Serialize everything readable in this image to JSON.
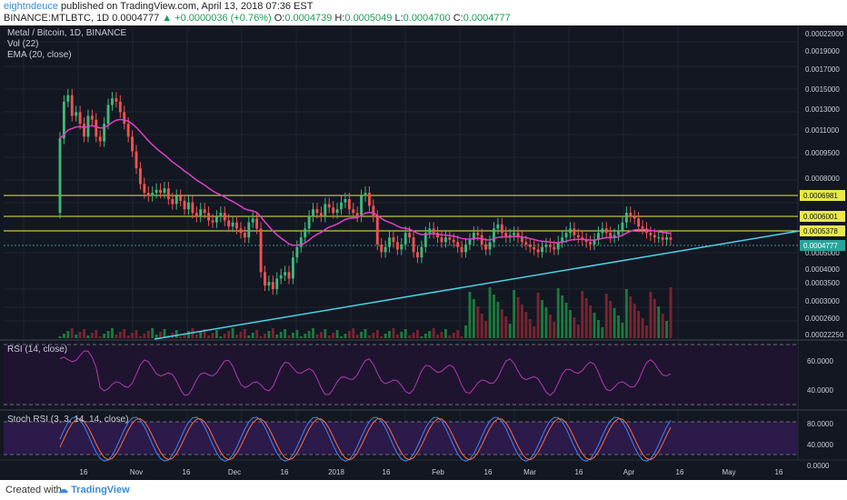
{
  "header": {
    "author": "eightndeuce",
    "published_text": "published on TradingView.com, April 13, 2018 07:36 EST",
    "symbol_text": "BINANCE:MTLBTC, 1D",
    "last": "0.0004777",
    "change": "▲ +0.0000036 (+0.76%)",
    "o_label": "O:",
    "o_value": "0.0004739",
    "h_label": "H:",
    "h_value": "0.0005049",
    "l_label": "L:",
    "l_value": "0.0004700",
    "c_label": "C:",
    "c_value": "0.0004777"
  },
  "main_pane": {
    "title": "Metal / Bitcoin, 1D, BINANCE",
    "vol_label": "Vol (22)",
    "ema_label": "EMA (20, close)"
  },
  "rsi_pane": {
    "label": "RSI (14, close)"
  },
  "stoch_pane": {
    "label": "Stoch RSI (3, 3, 14, 14, close)"
  },
  "footer": {
    "created_with": "Created with",
    "brand": "TradingView"
  },
  "colors": {
    "background": "#131722",
    "bull": "#26a69a",
    "bull_candle": "#3fb97a",
    "bear": "#ef5350",
    "ema": "#e040c8",
    "hline": "#e8e84a",
    "trendline": "#4fd0e8",
    "rsi": "#b03ab0",
    "stoch_k": "#3a86ff",
    "stoch_d": "#ff6a3d"
  },
  "chart_data": [
    {
      "type": "candlestick",
      "title": "Metal / Bitcoin, 1D, BINANCE",
      "price_axis_ticks": [
        "0.00022000",
        "0.0019000",
        "0.0017000",
        "0.0015000",
        "0.0013000",
        "0.0011000",
        "0.0009500",
        "0.0008000",
        "0.0005000",
        "0.0004000",
        "0.0003500",
        "0.0003000",
        "0.0002600",
        "0.00022250"
      ],
      "time_axis_ticks": [
        "16",
        "Nov",
        "16",
        "Dec",
        "16",
        "2018",
        "16",
        "Feb",
        "16",
        "Mar",
        "16",
        "Apr",
        "16",
        "May",
        "16"
      ],
      "price_labels": [
        {
          "value": "0.0006981",
          "style": "hline"
        },
        {
          "value": "0.0006001",
          "style": "hline"
        },
        {
          "value": "0.0005378",
          "style": "hline"
        },
        {
          "value": "0.0004777",
          "style": "last"
        }
      ],
      "close_series": [
        0.00118,
        0.00165,
        0.00175,
        0.00145,
        0.0015,
        0.00135,
        0.0012,
        0.00145,
        0.0014,
        0.0012,
        0.00115,
        0.00135,
        0.0016,
        0.0017,
        0.00165,
        0.0015,
        0.00135,
        0.0012,
        0.00105,
        0.0009,
        0.00078,
        0.00072,
        0.0007,
        0.00072,
        0.00074,
        0.00072,
        0.00075,
        0.00068,
        0.00065,
        0.0007,
        0.00067,
        0.00062,
        0.00066,
        0.0006,
        0.00058,
        0.00062,
        0.0006,
        0.00056,
        0.00055,
        0.00058,
        0.0006,
        0.00056,
        0.00053,
        0.00055,
        0.00052,
        0.0005,
        0.00048,
        0.00055,
        0.00057,
        0.00052,
        0.00035,
        0.00031,
        0.00032,
        0.0003,
        0.00033,
        0.00034,
        0.00035,
        0.00033,
        0.0004,
        0.00044,
        0.00048,
        0.00052,
        0.00058,
        0.00062,
        0.0006,
        0.00058,
        0.00065,
        0.00063,
        0.0006,
        0.00062,
        0.00066,
        0.00068,
        0.00062,
        0.0006,
        0.00058,
        0.0007,
        0.00072,
        0.00064,
        0.00058,
        0.00045,
        0.00042,
        0.00044,
        0.00048,
        0.00046,
        0.00043,
        0.00045,
        0.0005,
        0.00048,
        0.00042,
        0.0004,
        0.00044,
        0.0005,
        0.00052,
        0.0005,
        0.00048,
        0.00046,
        0.00048,
        0.00047,
        0.00046,
        0.00044,
        0.00042,
        0.00045,
        0.00047,
        0.0005,
        0.00049,
        0.00045,
        0.00043,
        0.00046,
        0.00052,
        0.00054,
        0.0005,
        0.00048,
        0.00049,
        0.0005,
        0.00048,
        0.00046,
        0.00045,
        0.00044,
        0.00043,
        0.00042,
        0.00044,
        0.00045,
        0.00044,
        0.00043,
        0.00046,
        0.00048,
        0.0005,
        0.00052,
        0.00049,
        0.00048,
        0.00047,
        0.00046,
        0.00045,
        0.00047,
        0.0005,
        0.00052,
        0.0005,
        0.00048,
        0.00049,
        0.00051,
        0.00055,
        0.0006,
        0.00058,
        0.00057,
        0.00053,
        0.00052,
        0.0005,
        0.00049,
        0.00048,
        0.00048,
        0.00047,
        0.00048,
        0.00047
      ]
    },
    {
      "type": "line",
      "title": "RSI (14, close)",
      "y_ticks": [
        "60.0000",
        "40.0000"
      ],
      "ylim": [
        25,
        78
      ]
    },
    {
      "type": "line",
      "title": "Stoch RSI (3, 3, 14, 14, close)",
      "y_ticks": [
        "80.0000",
        "40.0000",
        "0.0000"
      ],
      "ylim": [
        -5,
        100
      ]
    }
  ]
}
